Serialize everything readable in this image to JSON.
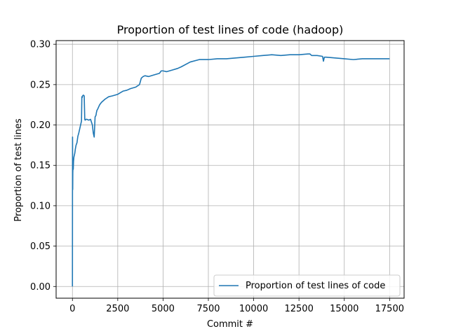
{
  "chart_data": {
    "type": "line",
    "title": "Proportion of test lines of code (hadoop)",
    "xlabel": "Commit #",
    "ylabel": "Proportion of test lines",
    "xlim": [
      -900,
      18300
    ],
    "ylim": [
      -0.0145,
      0.3045
    ],
    "xticks": [
      0,
      2500,
      5000,
      7500,
      10000,
      12500,
      15000,
      17500
    ],
    "xtick_labels": [
      "0",
      "2500",
      "5000",
      "7500",
      "10000",
      "12500",
      "15000",
      "17500"
    ],
    "yticks": [
      0.0,
      0.05,
      0.1,
      0.15,
      0.2,
      0.25,
      0.3
    ],
    "ytick_labels": [
      "0.00",
      "0.05",
      "0.10",
      "0.15",
      "0.20",
      "0.25",
      "0.30"
    ],
    "grid": true,
    "legend_position": "lower-right",
    "series_color": "#1f77b4",
    "series": [
      {
        "name": "Proportion of test lines of code",
        "x": [
          0,
          3,
          6,
          10,
          15,
          20,
          30,
          45,
          60,
          80,
          100,
          130,
          160,
          200,
          250,
          300,
          350,
          400,
          450,
          500,
          520,
          540,
          560,
          600,
          650,
          680,
          700,
          750,
          800,
          900,
          1000,
          1100,
          1150,
          1200,
          1250,
          1300,
          1320,
          1350,
          1400,
          1500,
          1600,
          1800,
          2000,
          2200,
          2500,
          2800,
          3000,
          3200,
          3500,
          3700,
          3800,
          3900,
          4000,
          4200,
          4500,
          4800,
          4900,
          5000,
          5200,
          5500,
          5800,
          6000,
          6500,
          7000,
          7200,
          7500,
          8000,
          8500,
          9000,
          9500,
          10000,
          10500,
          11000,
          11500,
          12000,
          12500,
          13000,
          13100,
          13200,
          13500,
          13800,
          13850,
          13900,
          14000,
          14500,
          15000,
          15500,
          16000,
          16500,
          17000,
          17500
        ],
        "y": [
          0.0,
          0.11,
          0.185,
          0.15,
          0.12,
          0.14,
          0.15,
          0.145,
          0.155,
          0.16,
          0.162,
          0.165,
          0.17,
          0.175,
          0.178,
          0.186,
          0.19,
          0.195,
          0.2,
          0.205,
          0.235,
          0.234,
          0.236,
          0.237,
          0.236,
          0.207,
          0.206,
          0.207,
          0.207,
          0.206,
          0.207,
          0.2,
          0.19,
          0.185,
          0.21,
          0.212,
          0.215,
          0.218,
          0.22,
          0.225,
          0.228,
          0.232,
          0.235,
          0.236,
          0.238,
          0.242,
          0.243,
          0.245,
          0.247,
          0.25,
          0.258,
          0.26,
          0.261,
          0.26,
          0.262,
          0.264,
          0.267,
          0.267,
          0.266,
          0.268,
          0.27,
          0.272,
          0.278,
          0.281,
          0.281,
          0.281,
          0.282,
          0.282,
          0.283,
          0.284,
          0.285,
          0.286,
          0.287,
          0.286,
          0.287,
          0.287,
          0.288,
          0.288,
          0.286,
          0.286,
          0.285,
          0.279,
          0.284,
          0.284,
          0.283,
          0.282,
          0.281,
          0.282,
          0.282,
          0.282,
          0.282
        ]
      }
    ]
  }
}
